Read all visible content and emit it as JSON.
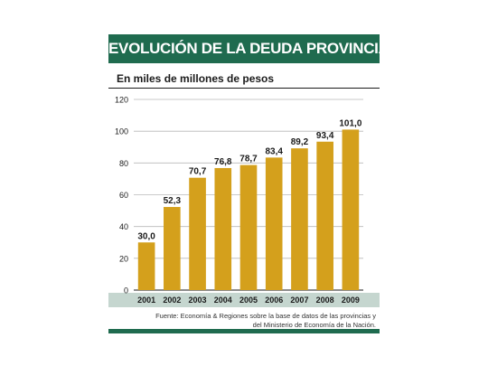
{
  "colors": {
    "bar": "#d4a01c",
    "title_bg": "#1f6b4f",
    "axis_band": "#c5d6cf"
  },
  "header": {
    "title": "EVOLUCIÓN DE LA DEUDA PROVINCIAL"
  },
  "footer": {
    "source_line1": "Fuente: Economía & Regiones sobre la base de datos de las provincias y",
    "source_line2": "del Ministerio de Economía de la Nación."
  },
  "chart_data": {
    "type": "bar",
    "title": "EVOLUCIÓN DE LA DEUDA PROVINCIAL",
    "subtitle": "En miles de millones de pesos",
    "xlabel": "",
    "ylabel": "",
    "categories": [
      "2001",
      "2002",
      "2003",
      "2004",
      "2005",
      "2006",
      "2007",
      "2008",
      "2009"
    ],
    "values": [
      30.0,
      52.3,
      70.7,
      76.8,
      78.7,
      83.4,
      89.2,
      93.4,
      101.0
    ],
    "value_labels": [
      "30,0",
      "52,3",
      "70,7",
      "76,8",
      "78,7",
      "83,4",
      "89,2",
      "93,4",
      "101,0"
    ],
    "ylim": [
      0,
      120
    ],
    "yticks": [
      0,
      20,
      40,
      60,
      80,
      100,
      120
    ],
    "grid": true,
    "legend": "none"
  }
}
